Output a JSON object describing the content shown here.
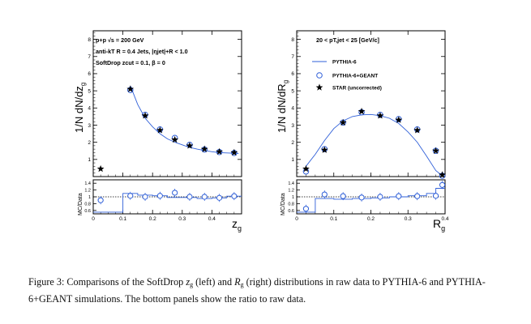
{
  "chart_data": [
    {
      "type": "scatter",
      "title": "",
      "xlabel": "z",
      "xlabel_sub": "g",
      "ylabel": "1/N dN/dz",
      "ylabel_sub": "g",
      "xlim": [
        0,
        0.5
      ],
      "ylim": [
        0,
        8.5
      ],
      "xticks": [
        0,
        0.1,
        0.2,
        0.3,
        0.4
      ],
      "yticks": [
        1,
        2,
        3,
        4,
        5,
        6,
        7,
        8
      ],
      "annotations": [
        "p+p  √s = 200 GeV",
        "anti-kT R = 0.4 Jets, |ηjet|+R < 1.0",
        "SoftDrop zcut = 0.1, β = 0"
      ],
      "series": [
        {
          "style": "line",
          "x": [
            0.125,
            0.15,
            0.175,
            0.2,
            0.225,
            0.25,
            0.275,
            0.3,
            0.325,
            0.35,
            0.375,
            0.4,
            0.425,
            0.45,
            0.475,
            0.49
          ],
          "y": [
            5.3,
            4.2,
            3.4,
            2.9,
            2.5,
            2.2,
            2.0,
            1.85,
            1.7,
            1.6,
            1.52,
            1.45,
            1.4,
            1.38,
            1.36,
            1.35
          ]
        },
        {
          "style": "open-circle",
          "x": [
            0.125,
            0.175,
            0.225,
            0.275,
            0.325,
            0.375,
            0.425,
            0.475
          ],
          "y": [
            5.05,
            3.6,
            2.75,
            2.25,
            1.85,
            1.58,
            1.43,
            1.38
          ]
        },
        {
          "style": "star",
          "x": [
            0.025,
            0.125,
            0.175,
            0.225,
            0.275,
            0.325,
            0.375,
            0.425,
            0.475
          ],
          "y": [
            0.45,
            5.1,
            3.55,
            2.7,
            2.15,
            1.8,
            1.6,
            1.45,
            1.4
          ]
        }
      ],
      "ratio": {
        "ylabel": "MC/Data",
        "ylim": [
          0.5,
          1.5
        ],
        "yticks": [
          0.6,
          0.8,
          1,
          1.2,
          1.4
        ],
        "line_step": {
          "edges": [
            0,
            0.05,
            0.1,
            0.15,
            0.2,
            0.25,
            0.3,
            0.35,
            0.4,
            0.45,
            0.5
          ],
          "values": [
            0.55,
            0.55,
            1.1,
            1.05,
            1.03,
            0.98,
            0.98,
            0.95,
            0.97,
            1.02
          ]
        },
        "points": {
          "x": [
            0.025,
            0.125,
            0.175,
            0.225,
            0.275,
            0.325,
            0.375,
            0.425,
            0.475
          ],
          "y": [
            0.9,
            1.03,
            1.0,
            1.03,
            1.12,
            1.0,
            1.0,
            0.97,
            1.02
          ]
        }
      }
    },
    {
      "type": "scatter",
      "title": "",
      "xlabel": "R",
      "xlabel_sub": "g",
      "ylabel": "1/N dN/dR",
      "ylabel_sub": "g",
      "xlim": [
        0,
        0.4
      ],
      "ylim": [
        0,
        8.5
      ],
      "xticks": [
        0,
        0.1,
        0.2,
        0.3,
        0.4
      ],
      "yticks": [
        1,
        2,
        3,
        4,
        5,
        6,
        7,
        8
      ],
      "annotations": [
        "20 < pT,jet < 25 [GeV/c]"
      ],
      "legend": [
        "PYTHIA-6",
        "PYTHIA-6+GEANT",
        "STAR (uncorrected)"
      ],
      "legend_position": "top-right",
      "series": [
        {
          "name": "PYTHIA-6",
          "style": "line",
          "x": [
            0.025,
            0.05,
            0.075,
            0.1,
            0.125,
            0.15,
            0.175,
            0.2,
            0.225,
            0.25,
            0.275,
            0.3,
            0.325,
            0.35,
            0.375,
            0.39
          ],
          "y": [
            0.6,
            1.3,
            2.1,
            2.8,
            3.25,
            3.5,
            3.6,
            3.62,
            3.55,
            3.4,
            3.1,
            2.6,
            2.0,
            1.2,
            0.35,
            0.1
          ]
        },
        {
          "name": "PYTHIA-6+GEANT",
          "style": "open-circle",
          "x": [
            0.025,
            0.075,
            0.125,
            0.175,
            0.225,
            0.275,
            0.325,
            0.375,
            0.3925
          ],
          "y": [
            0.3,
            1.6,
            3.15,
            3.75,
            3.6,
            3.35,
            2.75,
            1.5,
            0.05
          ]
        },
        {
          "name": "STAR (uncorrected)",
          "style": "star",
          "x": [
            0.025,
            0.075,
            0.125,
            0.175,
            0.225,
            0.275,
            0.325,
            0.375,
            0.3925
          ],
          "y": [
            0.45,
            1.55,
            3.15,
            3.8,
            3.55,
            3.3,
            2.7,
            1.5,
            0.1
          ]
        }
      ],
      "ratio": {
        "ylabel": "MC/Data",
        "ylim": [
          0.5,
          1.5
        ],
        "yticks": [
          0.6,
          0.8,
          1,
          1.2,
          1.4
        ],
        "line_step": {
          "edges": [
            0,
            0.025,
            0.05,
            0.1,
            0.15,
            0.2,
            0.25,
            0.3,
            0.35,
            0.375,
            0.4
          ],
          "values": [
            0.55,
            0.55,
            0.95,
            0.93,
            0.95,
            0.97,
            1.0,
            1.03,
            1.1,
            1.25
          ]
        },
        "points": {
          "x": [
            0.025,
            0.075,
            0.125,
            0.175,
            0.225,
            0.275,
            0.325,
            0.375,
            0.3925
          ],
          "y": [
            0.65,
            1.07,
            1.02,
            0.98,
            1.0,
            1.02,
            1.02,
            1.03,
            1.35
          ]
        }
      }
    }
  ],
  "caption": {
    "part1": "Figure 3:  Comparisons of the SoftDrop ",
    "zg_main": "z",
    "zg_sub": "g",
    "part2": " (left) and ",
    "rg_main": "R",
    "rg_sub": "g",
    "part3": " (right) distributions in raw data to PYTHIA-6 and PYTHIA-6+GEANT simulations. The bottom panels show the ratio to raw data."
  }
}
